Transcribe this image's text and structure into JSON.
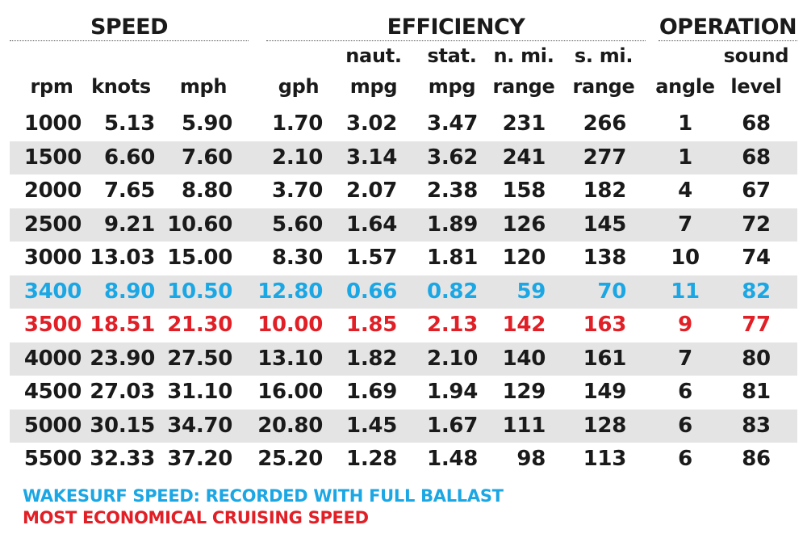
{
  "groups": {
    "speed": "SPEED",
    "efficiency": "EFFICIENCY",
    "operation": "OPERATION"
  },
  "headers": {
    "rpm": [
      "",
      "rpm"
    ],
    "knots": [
      "",
      "knots"
    ],
    "mph": [
      "",
      "mph"
    ],
    "gph": [
      "",
      "gph"
    ],
    "naut_mpg": [
      "naut.",
      "mpg"
    ],
    "stat_mpg": [
      "stat.",
      "mpg"
    ],
    "nmi_range": [
      "n. mi.",
      "range"
    ],
    "smi_range": [
      "s. mi.",
      "range"
    ],
    "angle": [
      "",
      "angle"
    ],
    "sound": [
      "sound",
      "level"
    ]
  },
  "rows": [
    {
      "values": [
        "1000",
        "5.13",
        "5.90",
        "1.70",
        "3.02",
        "3.47",
        "231",
        "266",
        "1",
        "68"
      ],
      "highlight": ""
    },
    {
      "values": [
        "1500",
        "6.60",
        "7.60",
        "2.10",
        "3.14",
        "3.62",
        "241",
        "277",
        "1",
        "68"
      ],
      "highlight": ""
    },
    {
      "values": [
        "2000",
        "7.65",
        "8.80",
        "3.70",
        "2.07",
        "2.38",
        "158",
        "182",
        "4",
        "67"
      ],
      "highlight": ""
    },
    {
      "values": [
        "2500",
        "9.21",
        "10.60",
        "5.60",
        "1.64",
        "1.89",
        "126",
        "145",
        "7",
        "72"
      ],
      "highlight": ""
    },
    {
      "values": [
        "3000",
        "13.03",
        "15.00",
        "8.30",
        "1.57",
        "1.81",
        "120",
        "138",
        "10",
        "74"
      ],
      "highlight": ""
    },
    {
      "values": [
        "3400",
        "8.90",
        "10.50",
        "12.80",
        "0.66",
        "0.82",
        "59",
        "70",
        "11",
        "82"
      ],
      "highlight": "blue"
    },
    {
      "values": [
        "3500",
        "18.51",
        "21.30",
        "10.00",
        "1.85",
        "2.13",
        "142",
        "163",
        "9",
        "77"
      ],
      "highlight": "red"
    },
    {
      "values": [
        "4000",
        "23.90",
        "27.50",
        "13.10",
        "1.82",
        "2.10",
        "140",
        "161",
        "7",
        "80"
      ],
      "highlight": ""
    },
    {
      "values": [
        "4500",
        "27.03",
        "31.10",
        "16.00",
        "1.69",
        "1.94",
        "129",
        "149",
        "6",
        "81"
      ],
      "highlight": ""
    },
    {
      "values": [
        "5000",
        "30.15",
        "34.70",
        "20.80",
        "1.45",
        "1.67",
        "111",
        "128",
        "6",
        "83"
      ],
      "highlight": ""
    },
    {
      "values": [
        "5500",
        "32.33",
        "37.20",
        "25.20",
        "1.28",
        "1.48",
        "98",
        "113",
        "6",
        "86"
      ],
      "highlight": ""
    }
  ],
  "notes": {
    "wakesurf": "WAKESURF SPEED: RECORDED WITH FULL BALLAST",
    "economical": "MOST ECONOMICAL CRUISING SPEED"
  },
  "colors": {
    "wakesurf_blue": "#1ba6e4",
    "economical_red": "#e11f26",
    "row_shade": "#e4e4e4",
    "text": "#1a1a1a"
  }
}
